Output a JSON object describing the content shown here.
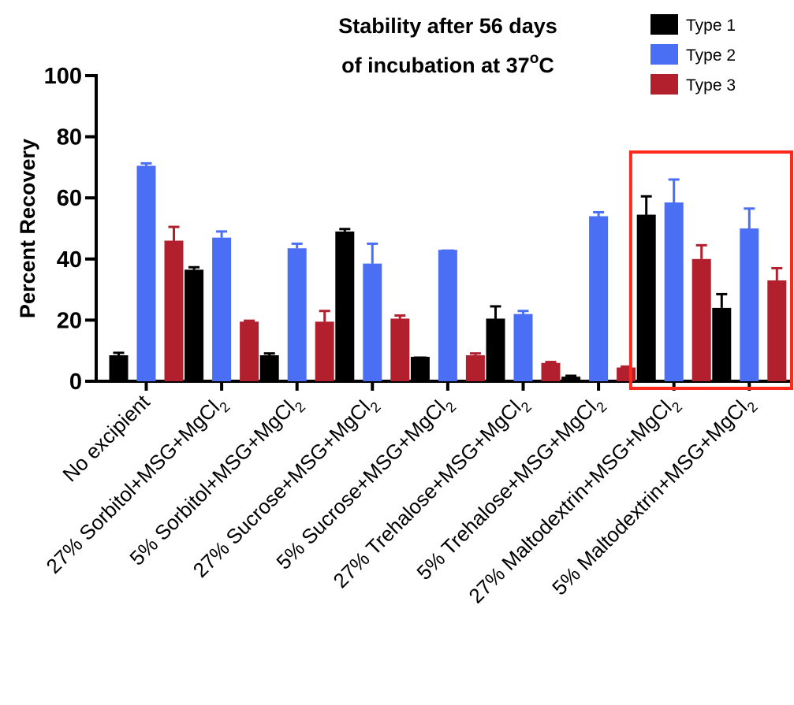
{
  "chart_data": {
    "type": "bar",
    "title_line1": "Stability after 56 days",
    "title_line2_prefix": "of incubation at 37",
    "title_line2_sup": "o",
    "title_line2_suffix": "C",
    "ylabel": "Percent Recovery",
    "xlabel": "",
    "ylim": [
      0,
      100
    ],
    "yticks": [
      "0",
      "20",
      "40",
      "60",
      "80",
      "100"
    ],
    "categories": [
      {
        "main": "No excipient",
        "sub": ""
      },
      {
        "main": "27% Sorbitol+MSG+MgCl",
        "sub": "2"
      },
      {
        "main": "5% Sorbitol+MSG+MgCl",
        "sub": "2"
      },
      {
        "main": "27% Sucrose+MSG+MgCl",
        "sub": "2"
      },
      {
        "main": "5% Sucrose+MSG+MgCl",
        "sub": "2"
      },
      {
        "main": "27% Trehalose+MSG+MgCl",
        "sub": "2"
      },
      {
        "main": "5% Trehalose+MSG+MgCl",
        "sub": "2"
      },
      {
        "main": "27% Maltodextrin+MSG+MgCl",
        "sub": "2"
      },
      {
        "main": "5% Maltodextrin+MSG+MgCl",
        "sub": "2"
      }
    ],
    "series": [
      {
        "name": "Type 1",
        "color": "#000000",
        "values": [
          8.5,
          36.5,
          8.5,
          49,
          8,
          20.5,
          1.5,
          54.5,
          24
        ],
        "errors": [
          0.8,
          0.8,
          0.6,
          0.8,
          0,
          4,
          0.3,
          6,
          4.5
        ]
      },
      {
        "name": "Type 2",
        "color": "#4a6ff5",
        "values": [
          70.5,
          47,
          43.5,
          38.5,
          43,
          22,
          54,
          58.5,
          50
        ],
        "errors": [
          0.8,
          2,
          1.5,
          6.5,
          0,
          1,
          1.3,
          7.5,
          6.5
        ]
      },
      {
        "name": "Type 3",
        "color": "#b21f2d",
        "values": [
          46,
          19.5,
          19.5,
          20.5,
          8.5,
          6,
          4.5,
          40,
          33
        ],
        "errors": [
          4.5,
          0.3,
          3.5,
          1,
          0.6,
          0.3,
          0.3,
          4.5,
          4
        ]
      }
    ],
    "legend": "top-right",
    "grid": false,
    "highlight": {
      "color": "#ff2a1a",
      "categories": [
        7,
        8
      ]
    }
  }
}
